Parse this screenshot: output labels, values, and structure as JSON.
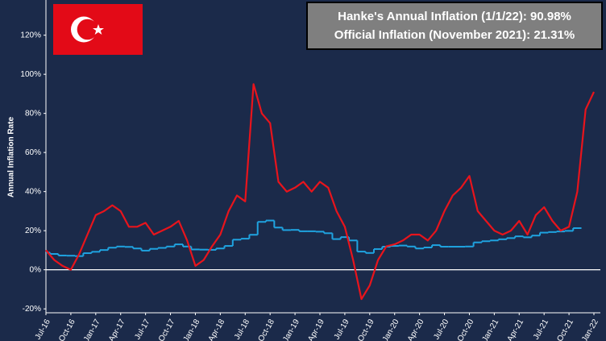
{
  "chart_data": {
    "type": "line",
    "annotations": [
      "Hanke's Annual Inflation (1/1/22): 90.98%",
      "Official Inflation (November 2021): 21.31%"
    ],
    "y_label": "Annual Inflation Rate",
    "categories": [
      "Jul-16",
      null,
      null,
      "Oct-16",
      null,
      null,
      "Jan-17",
      null,
      null,
      "Apr-17",
      null,
      null,
      "Jul-17",
      null,
      null,
      "Oct-17",
      null,
      null,
      "Jan-18",
      null,
      null,
      "Apr-18",
      null,
      null,
      "Jul-18",
      null,
      null,
      "Oct-18",
      null,
      null,
      "Jan-19",
      null,
      null,
      "Apr-19",
      null,
      null,
      "Jul-19",
      null,
      null,
      "Oct-19",
      null,
      null,
      "Jan-20",
      null,
      null,
      "Apr-20",
      null,
      null,
      "Jul-20",
      null,
      null,
      "Oct-20",
      null,
      null,
      "Jan-21",
      null,
      null,
      "Apr-21",
      null,
      null,
      "Jul-21",
      null,
      null,
      "Oct-21",
      null,
      null,
      "Jan-22"
    ],
    "series": [
      {
        "color": "#e8141c",
        "step": false,
        "values": [
          10,
          5,
          2,
          0,
          8,
          18,
          28,
          30,
          33,
          30,
          22,
          22,
          24,
          18,
          20,
          22,
          25,
          15,
          2,
          5,
          12,
          18,
          30,
          38,
          35,
          95,
          80,
          75,
          45,
          40,
          42,
          45,
          40,
          45,
          42,
          30,
          22,
          5,
          -15,
          -8,
          5,
          12,
          13,
          15,
          18,
          18,
          15,
          20,
          30,
          38,
          42,
          48,
          30,
          25,
          20,
          18,
          20,
          25,
          18,
          28,
          32,
          25,
          20,
          22,
          40,
          82,
          90.98
        ]
      },
      {
        "color": "#1fa3e0",
        "step": true,
        "values": [
          8.8,
          8.1,
          7.3,
          7.2,
          7.0,
          8.5,
          9.2,
          10.1,
          11.3,
          11.9,
          11.7,
          10.9,
          9.8,
          10.7,
          11.2,
          11.9,
          13.0,
          11.9,
          10.4,
          10.3,
          10.2,
          10.9,
          12.2,
          15.4,
          15.9,
          17.9,
          24.5,
          25.2,
          21.6,
          20.3,
          20.4,
          19.7,
          19.7,
          19.5,
          18.7,
          15.7,
          16.7,
          15.0,
          9.3,
          8.6,
          10.6,
          11.8,
          12.2,
          12.4,
          11.9,
          10.9,
          11.4,
          12.6,
          11.8,
          11.8,
          11.8,
          11.9,
          14.0,
          14.6,
          15.0,
          15.6,
          16.2,
          17.1,
          16.6,
          17.5,
          19.0,
          19.3,
          19.6,
          19.9,
          21.31,
          null,
          null
        ]
      }
    ],
    "ylim": [
      -22,
      138
    ],
    "yticks": [
      {
        "value": -20,
        "label": "-20%"
      },
      {
        "value": 0,
        "label": "0%"
      },
      {
        "value": 20,
        "label": "20%"
      },
      {
        "value": 40,
        "label": "40%"
      },
      {
        "value": 60,
        "label": "60%"
      },
      {
        "value": 80,
        "label": "80%"
      },
      {
        "value": 100,
        "label": "100%"
      },
      {
        "value": 120,
        "label": "120%"
      }
    ],
    "zero_line": true
  }
}
